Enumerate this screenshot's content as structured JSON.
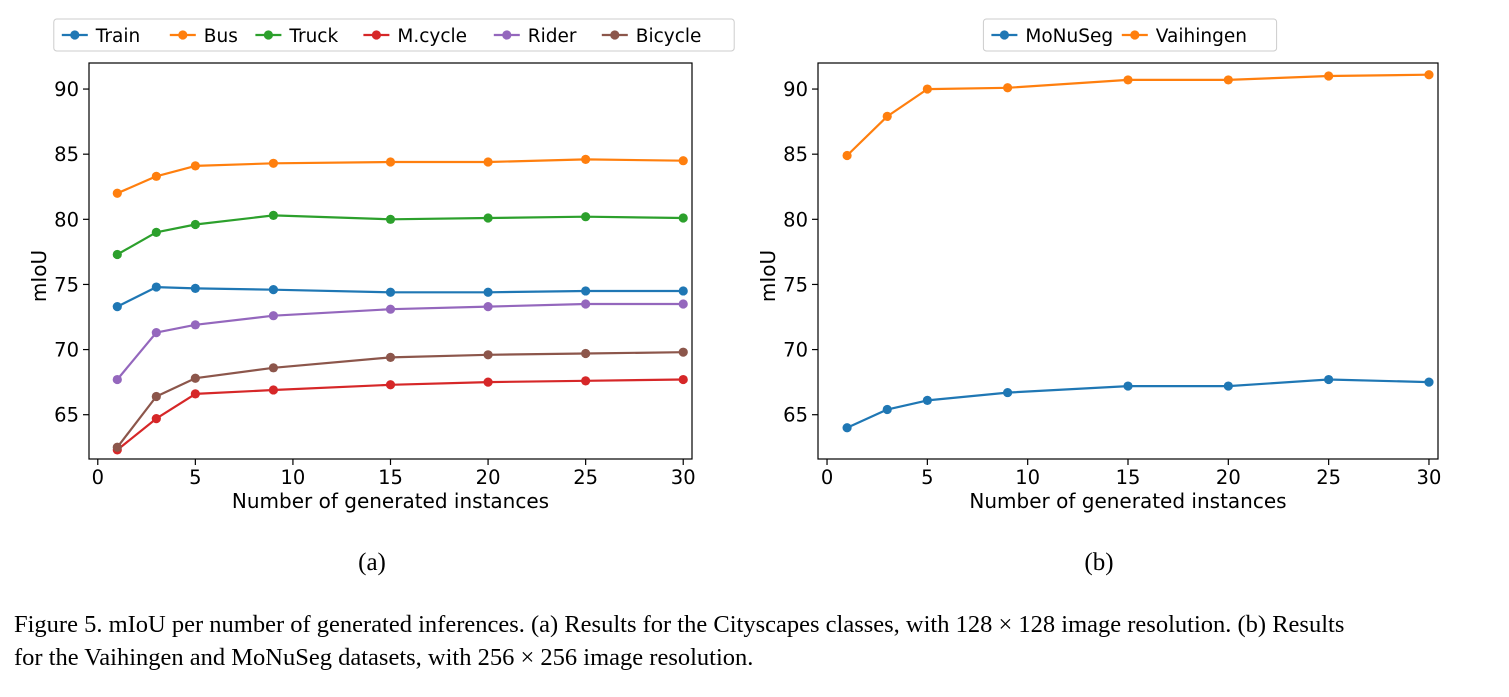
{
  "chart_data": [
    {
      "type": "line",
      "id": "a",
      "xlabel": "Number of generated instances",
      "ylabel": "mIoU",
      "xlim": [
        -0.45,
        30.45
      ],
      "ylim": [
        61.6,
        92.0
      ],
      "xticks": [
        0,
        5,
        10,
        15,
        20,
        25,
        30
      ],
      "yticks": [
        65,
        70,
        75,
        80,
        85,
        90
      ],
      "x": [
        1,
        3,
        5,
        9,
        15,
        20,
        25,
        30
      ],
      "legend_placement": "top-center, outside",
      "sublabel": "(a)",
      "series": [
        {
          "name": "Train",
          "color": "#1f77b4",
          "values": [
            73.3,
            74.8,
            74.7,
            74.6,
            74.4,
            74.4,
            74.5,
            74.5
          ]
        },
        {
          "name": "Bus",
          "color": "#ff7f0e",
          "values": [
            82.0,
            83.3,
            84.1,
            84.3,
            84.4,
            84.4,
            84.6,
            84.5
          ]
        },
        {
          "name": "Truck",
          "color": "#2ca02c",
          "values": [
            77.3,
            79.0,
            79.6,
            80.3,
            80.0,
            80.1,
            80.2,
            80.1
          ]
        },
        {
          "name": "M.cycle",
          "color": "#d62728",
          "values": [
            62.3,
            64.7,
            66.6,
            66.9,
            67.3,
            67.5,
            67.6,
            67.7
          ]
        },
        {
          "name": "Rider",
          "color": "#9467bd",
          "values": [
            67.7,
            71.3,
            71.9,
            72.6,
            73.1,
            73.3,
            73.5,
            73.5
          ]
        },
        {
          "name": "Bicycle",
          "color": "#8c564b",
          "values": [
            62.5,
            66.4,
            67.8,
            68.6,
            69.4,
            69.6,
            69.7,
            69.8
          ]
        }
      ]
    },
    {
      "type": "line",
      "id": "b",
      "xlabel": "Number of generated instances",
      "ylabel": "mIoU",
      "xlim": [
        -0.45,
        30.45
      ],
      "ylim": [
        61.6,
        92.0
      ],
      "xticks": [
        0,
        5,
        10,
        15,
        20,
        25,
        30
      ],
      "yticks": [
        65,
        70,
        75,
        80,
        85,
        90
      ],
      "x": [
        1,
        3,
        5,
        9,
        15,
        20,
        25,
        30
      ],
      "legend_placement": "top-center, outside",
      "sublabel": "(b)",
      "series": [
        {
          "name": "MoNuSeg",
          "color": "#1f77b4",
          "values": [
            64.0,
            65.4,
            66.1,
            66.7,
            67.2,
            67.2,
            67.7,
            67.5
          ]
        },
        {
          "name": "Vaihingen",
          "color": "#ff7f0e",
          "values": [
            84.9,
            87.9,
            90.0,
            90.1,
            90.7,
            90.7,
            91.0,
            91.1
          ]
        }
      ]
    }
  ],
  "caption": {
    "line1": "Figure 5. mIoU per number of generated inferences. (a) Results for the Cityscapes classes, with 128 × 128 image resolution. (b) Results",
    "line2": "for the Vaihingen and MoNuSeg datasets, with 256 × 256 image resolution."
  }
}
